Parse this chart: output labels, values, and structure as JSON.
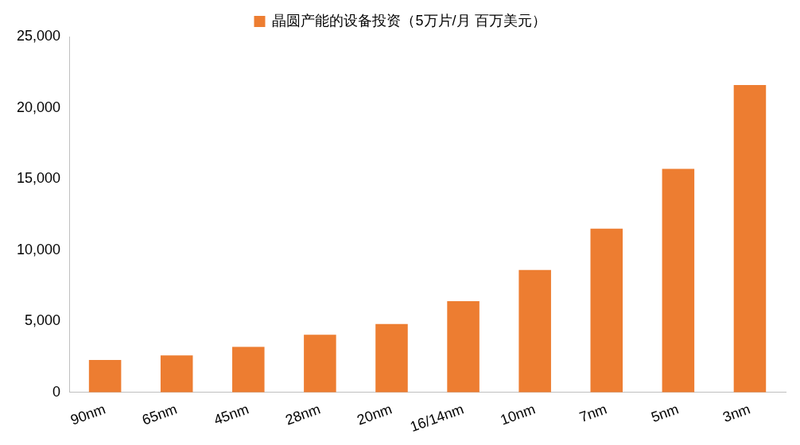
{
  "chart_data": {
    "type": "bar",
    "categories": [
      "90nm",
      "65nm",
      "45nm",
      "28nm",
      "20nm",
      "16/14nm",
      "10nm",
      "7nm",
      "5nm",
      "3nm"
    ],
    "series": [
      {
        "name": "晶圆产能的设备投资（5万片/月 百万美元）",
        "color": "#ed7d31",
        "values": [
          2270,
          2600,
          3200,
          4050,
          4800,
          6400,
          8600,
          11500,
          15700,
          21600
        ]
      }
    ],
    "ylim": [
      0,
      25000
    ],
    "yticks": [
      {
        "value": 0,
        "label": "0"
      },
      {
        "value": 5000,
        "label": "5,000"
      },
      {
        "value": 10000,
        "label": "10,000"
      },
      {
        "value": 15000,
        "label": "15,000"
      },
      {
        "value": 20000,
        "label": "20,000"
      },
      {
        "value": 25000,
        "label": "25,000"
      }
    ],
    "grid": false,
    "legend": "top"
  }
}
